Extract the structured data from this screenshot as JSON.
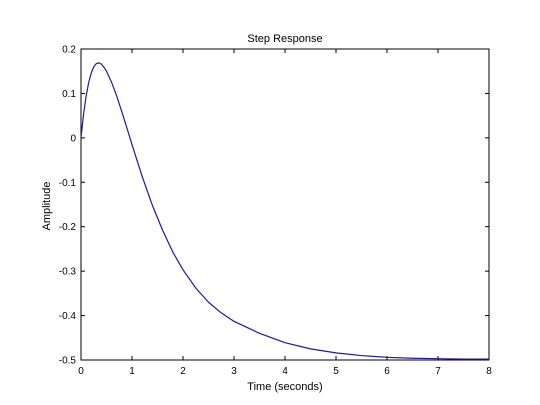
{
  "chart_data": {
    "type": "line",
    "title": "Step Response",
    "xlabel": "Time (seconds)",
    "ylabel": "Amplitude",
    "xlim": [
      0,
      8
    ],
    "ylim": [
      -0.5,
      0.2
    ],
    "xticks": [
      "0",
      "1",
      "2",
      "3",
      "4",
      "5",
      "6",
      "7",
      "8"
    ],
    "yticks": [
      "0.2",
      "0.1",
      "0",
      "-0.1",
      "-0.2",
      "-0.3",
      "-0.4",
      "-0.5"
    ],
    "grid": false,
    "series": [
      {
        "color": "#1a1aa6",
        "x": [
          0,
          0.05,
          0.1,
          0.15,
          0.2,
          0.25,
          0.3,
          0.35,
          0.4,
          0.45,
          0.5,
          0.6,
          0.7,
          0.8,
          0.9,
          1.0,
          1.2,
          1.4,
          1.6,
          1.8,
          2.0,
          2.25,
          2.5,
          2.75,
          3.0,
          3.5,
          4.0,
          4.5,
          5.0,
          5.5,
          6.0,
          6.5,
          7.0,
          7.5,
          8.0
        ],
        "y": [
          0,
          0.053,
          0.094,
          0.124,
          0.146,
          0.16,
          0.167,
          0.169,
          0.166,
          0.159,
          0.15,
          0.125,
          0.094,
          0.059,
          0.022,
          -0.015,
          -0.087,
          -0.152,
          -0.208,
          -0.257,
          -0.297,
          -0.338,
          -0.37,
          -0.394,
          -0.413,
          -0.44,
          -0.461,
          -0.475,
          -0.484,
          -0.49,
          -0.494,
          -0.496,
          -0.497,
          -0.498,
          -0.498
        ]
      }
    ]
  }
}
